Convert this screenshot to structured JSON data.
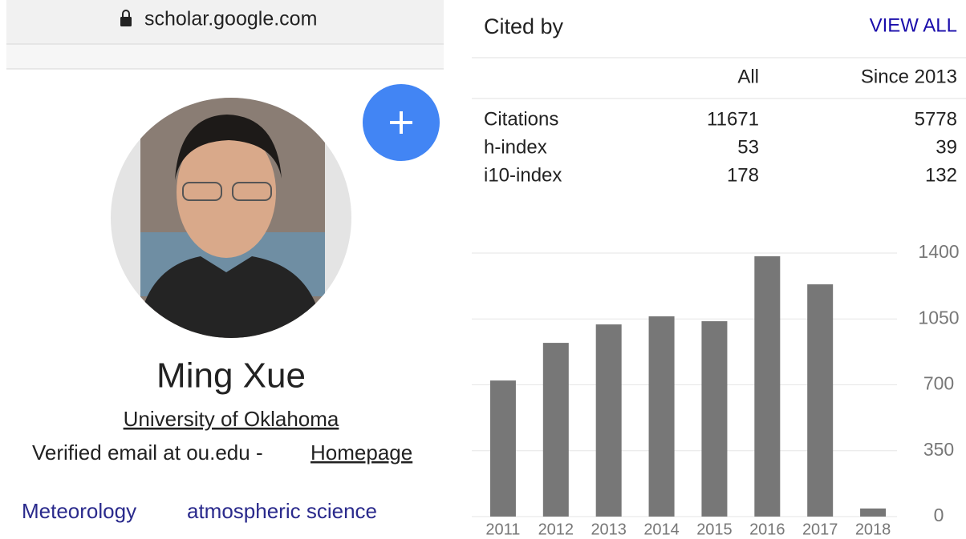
{
  "browser": {
    "url": "scholar.google.com"
  },
  "profile": {
    "name": "Ming Xue",
    "affiliation": "University of Oklahoma",
    "email": "Verified email at ou.edu -",
    "homepage": "Homepage",
    "interests": [
      "Meteorology",
      "atmospheric science"
    ]
  },
  "cited_by": {
    "title": "Cited by",
    "view_all": "VIEW ALL",
    "columns": [
      "All",
      "Since 2013"
    ],
    "rows": [
      [
        "Citations",
        11671,
        5778
      ],
      [
        "h-index",
        53,
        39
      ],
      [
        "i10-index",
        178,
        132
      ]
    ]
  },
  "chart": {
    "type": "bar",
    "categories": [
      "2011",
      "2012",
      "2013",
      "2014",
      "2015",
      "2016",
      "2017",
      "2018"
    ],
    "values": [
      723,
      923,
      1021,
      1064,
      1038,
      1383,
      1234,
      43
    ],
    "color": "#777777",
    "ylim": [
      0,
      1400
    ],
    "yticks": [
      0,
      350,
      700,
      1050,
      1400
    ],
    "grid": true
  }
}
